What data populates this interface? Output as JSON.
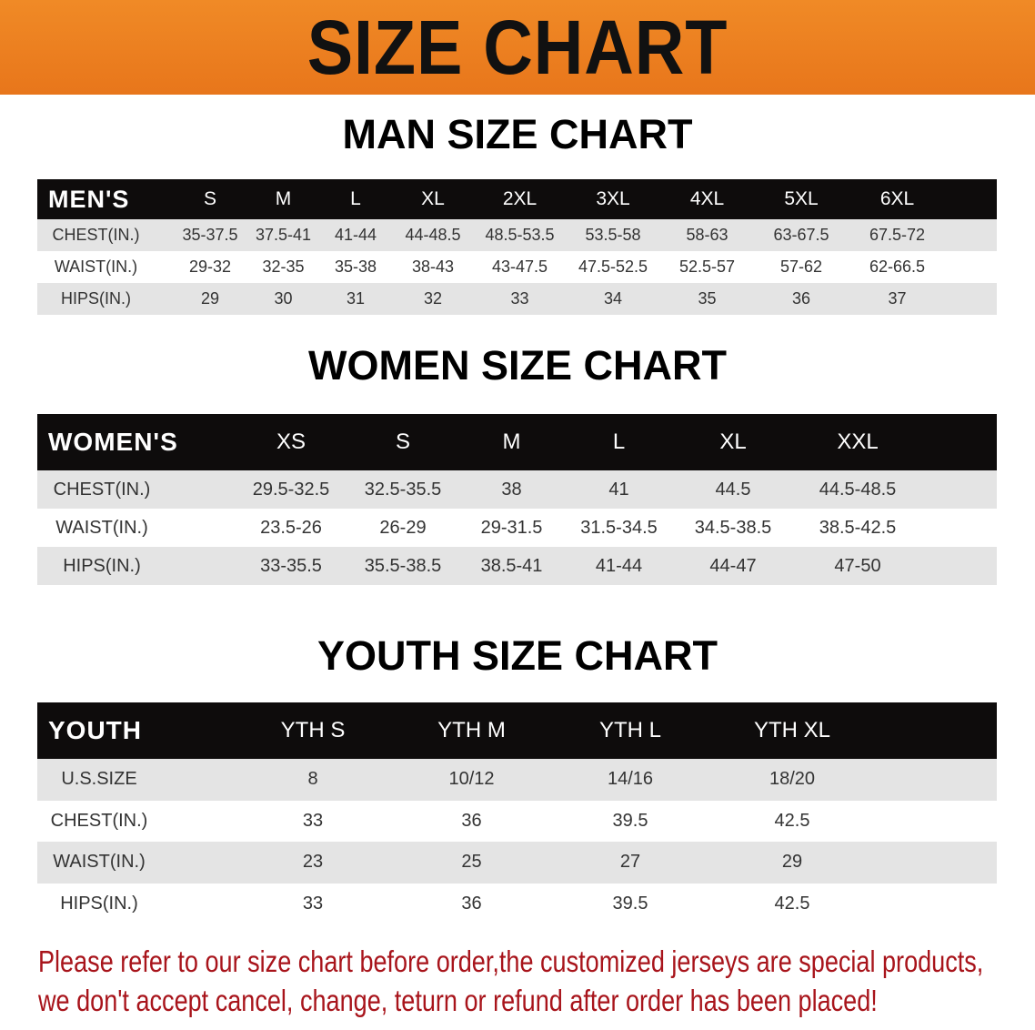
{
  "banner": {
    "title": "SIZE CHART",
    "color": "#e8761b"
  },
  "men": {
    "title": "MAN SIZE CHART",
    "header": [
      "MEN'S",
      "S",
      "M",
      "L",
      "XL",
      "2XL",
      "3XL",
      "4XL",
      "5XL",
      "6XL"
    ],
    "rows": [
      [
        "CHEST(IN.)",
        "35-37.5",
        "37.5-41",
        "41-44",
        "44-48.5",
        "48.5-53.5",
        "53.5-58",
        "58-63",
        "63-67.5",
        "67.5-72"
      ],
      [
        "WAIST(IN.)",
        "29-32",
        "32-35",
        "35-38",
        "38-43",
        "43-47.5",
        "47.5-52.5",
        "52.5-57",
        "57-62",
        "62-66.5"
      ],
      [
        "HIPS(IN.)",
        "29",
        "30",
        "31",
        "32",
        "33",
        "34",
        "35",
        "36",
        "37"
      ]
    ]
  },
  "women": {
    "title": "WOMEN SIZE CHART",
    "header": [
      "WOMEN'S",
      "XS",
      "S",
      "M",
      "L",
      "XL",
      "XXL"
    ],
    "rows": [
      [
        "CHEST(IN.)",
        "29.5-32.5",
        "32.5-35.5",
        "38",
        "41",
        "44.5",
        "44.5-48.5"
      ],
      [
        "WAIST(IN.)",
        "23.5-26",
        "26-29",
        "29-31.5",
        "31.5-34.5",
        "34.5-38.5",
        "38.5-42.5"
      ],
      [
        "HIPS(IN.)",
        "33-35.5",
        "35.5-38.5",
        "38.5-41",
        "41-44",
        "44-47",
        "47-50"
      ]
    ]
  },
  "youth": {
    "title": "YOUTH SIZE CHART",
    "header": [
      "YOUTH",
      "YTH S",
      "YTH M",
      "YTH L",
      "YTH XL"
    ],
    "rows": [
      [
        "U.S.SIZE",
        "8",
        "10/12",
        "14/16",
        "18/20"
      ],
      [
        "CHEST(IN.)",
        "33",
        "36",
        "39.5",
        "42.5"
      ],
      [
        "WAIST(IN.)",
        "23",
        "25",
        "27",
        "29"
      ],
      [
        "HIPS(IN.)",
        "33",
        "36",
        "39.5",
        "42.5"
      ]
    ]
  },
  "notice": {
    "line1": "Please refer to our size chart before order,the customized jerseys are special products,",
    "line2": "we don't accept cancel, change, teturn or refund after order has been placed!",
    "color": "#a8141b"
  }
}
